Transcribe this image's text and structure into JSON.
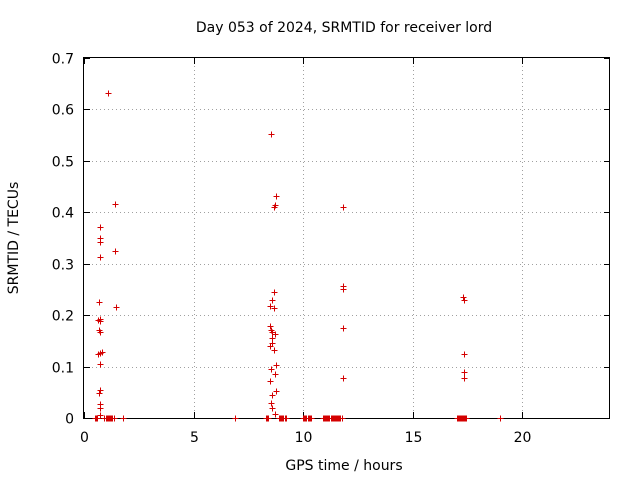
{
  "chart_data": {
    "type": "scatter",
    "title": "Day 053 of 2024, SRMTID for receiver lord",
    "xlabel": "GPS time / hours",
    "ylabel": "SRMTID / TECUs",
    "xlim": [
      0,
      24
    ],
    "ylim": [
      0,
      0.7
    ],
    "xticks": [
      0,
      5,
      10,
      15,
      20
    ],
    "yticks": [
      0,
      0.1,
      0.2,
      0.3,
      0.4,
      0.5,
      0.6,
      0.7
    ],
    "xtick_labels": [
      "0",
      "5",
      "10",
      "15",
      "20"
    ],
    "ytick_labels": [
      "0",
      "0.1",
      "0.2",
      "0.3",
      "0.4",
      "0.5",
      "0.6",
      "0.7"
    ],
    "grid": true,
    "marker": "+",
    "color": "#d40000",
    "series": [
      {
        "name": "SRMTID",
        "points": [
          [
            1.1,
            0.632
          ],
          [
            1.4,
            0.417
          ],
          [
            0.75,
            0.371
          ],
          [
            0.72,
            0.35
          ],
          [
            0.72,
            0.343
          ],
          [
            1.4,
            0.325
          ],
          [
            0.72,
            0.313
          ],
          [
            0.68,
            0.226
          ],
          [
            1.45,
            0.215
          ],
          [
            0.75,
            0.193
          ],
          [
            0.62,
            0.19
          ],
          [
            0.72,
            0.188
          ],
          [
            0.68,
            0.172
          ],
          [
            0.72,
            0.168
          ],
          [
            0.8,
            0.129
          ],
          [
            0.72,
            0.126
          ],
          [
            0.62,
            0.124
          ],
          [
            0.75,
            0.105
          ],
          [
            0.72,
            0.055
          ],
          [
            0.68,
            0.048
          ],
          [
            0.75,
            0.028
          ],
          [
            0.75,
            0.02
          ],
          [
            0.72,
            0.006
          ],
          [
            8.55,
            0.553
          ],
          [
            8.75,
            0.432
          ],
          [
            8.7,
            0.414
          ],
          [
            8.65,
            0.41
          ],
          [
            8.65,
            0.245
          ],
          [
            8.6,
            0.23
          ],
          [
            8.5,
            0.218
          ],
          [
            8.65,
            0.214
          ],
          [
            8.5,
            0.178
          ],
          [
            8.55,
            0.172
          ],
          [
            8.6,
            0.168
          ],
          [
            8.7,
            0.163
          ],
          [
            8.6,
            0.155
          ],
          [
            8.6,
            0.145
          ],
          [
            8.5,
            0.14
          ],
          [
            8.65,
            0.132
          ],
          [
            8.75,
            0.104
          ],
          [
            8.55,
            0.095
          ],
          [
            8.7,
            0.085
          ],
          [
            8.5,
            0.072
          ],
          [
            8.75,
            0.052
          ],
          [
            8.6,
            0.045
          ],
          [
            8.55,
            0.03
          ],
          [
            8.6,
            0.02
          ],
          [
            8.7,
            0.008
          ],
          [
            11.8,
            0.41
          ],
          [
            11.8,
            0.256
          ],
          [
            11.8,
            0.251
          ],
          [
            11.8,
            0.175
          ],
          [
            11.8,
            0.078
          ],
          [
            17.3,
            0.236
          ],
          [
            17.35,
            0.229
          ],
          [
            17.35,
            0.124
          ],
          [
            17.35,
            0.09
          ],
          [
            17.35,
            0.078
          ],
          [
            0.5,
            0
          ],
          [
            0.55,
            0
          ],
          [
            0.6,
            0
          ],
          [
            0.9,
            0
          ],
          [
            1.0,
            0
          ],
          [
            1.05,
            0
          ],
          [
            1.1,
            0
          ],
          [
            1.15,
            0
          ],
          [
            1.2,
            0
          ],
          [
            1.25,
            0
          ],
          [
            1.3,
            0
          ],
          [
            1.35,
            0
          ],
          [
            1.8,
            0
          ],
          [
            6.9,
            0
          ],
          [
            8.3,
            0
          ],
          [
            8.35,
            0
          ],
          [
            8.4,
            0
          ],
          [
            8.9,
            0
          ],
          [
            8.95,
            0
          ],
          [
            9.0,
            0
          ],
          [
            9.05,
            0
          ],
          [
            9.1,
            0
          ],
          [
            9.15,
            0
          ],
          [
            9.2,
            0
          ],
          [
            10.0,
            0
          ],
          [
            10.05,
            0
          ],
          [
            10.1,
            0
          ],
          [
            10.15,
            0
          ],
          [
            10.2,
            0
          ],
          [
            10.25,
            0
          ],
          [
            10.3,
            0
          ],
          [
            10.35,
            0
          ],
          [
            10.9,
            0
          ],
          [
            10.95,
            0
          ],
          [
            11.0,
            0
          ],
          [
            11.05,
            0
          ],
          [
            11.1,
            0
          ],
          [
            11.15,
            0
          ],
          [
            11.2,
            0
          ],
          [
            11.25,
            0
          ],
          [
            11.3,
            0
          ],
          [
            11.35,
            0
          ],
          [
            11.4,
            0
          ],
          [
            11.45,
            0
          ],
          [
            11.5,
            0
          ],
          [
            11.55,
            0
          ],
          [
            11.6,
            0
          ],
          [
            11.65,
            0
          ],
          [
            11.7,
            0
          ],
          [
            11.75,
            0
          ],
          [
            17.0,
            0
          ],
          [
            17.05,
            0
          ],
          [
            17.1,
            0
          ],
          [
            17.15,
            0
          ],
          [
            17.2,
            0
          ],
          [
            17.25,
            0
          ],
          [
            17.3,
            0
          ],
          [
            17.35,
            0
          ],
          [
            17.4,
            0
          ],
          [
            17.45,
            0
          ],
          [
            19.0,
            0
          ]
        ]
      }
    ]
  }
}
